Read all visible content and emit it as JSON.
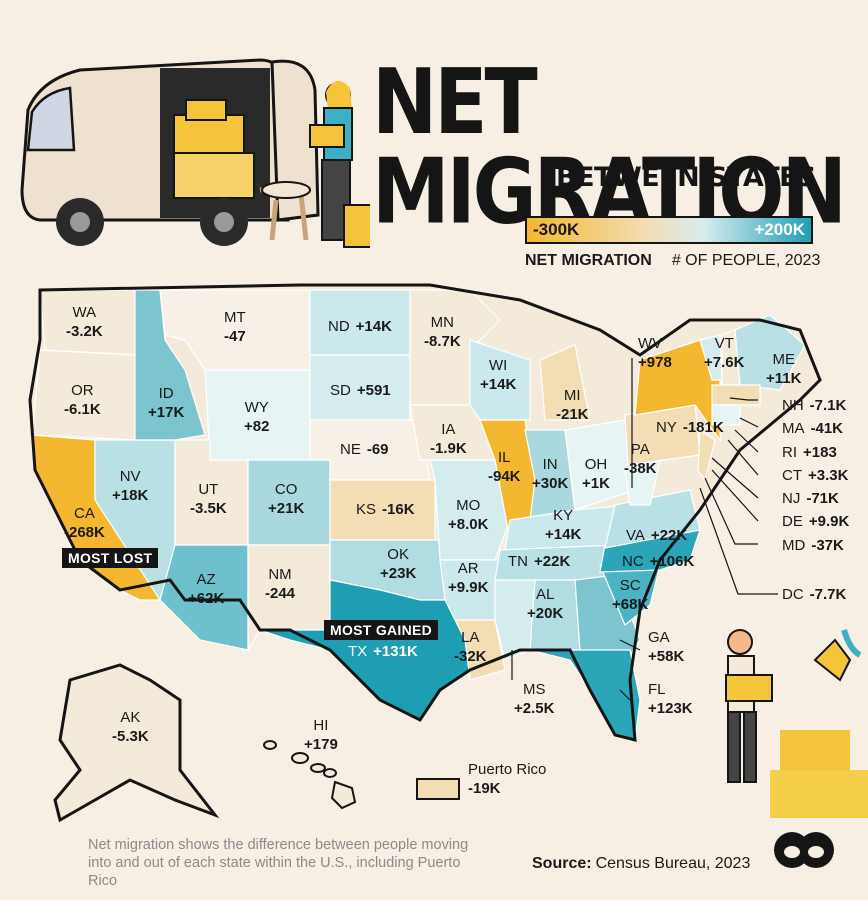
{
  "title": "NET MIGRATION",
  "subtitle": "BETWEEN STATES",
  "legend": {
    "min_label": "-300K",
    "max_label": "+200K",
    "caption_bold": "NET MIGRATION",
    "caption_rest": "# OF PEOPLE, 2023",
    "low_color": "#f4b730",
    "mid_color": "#f3ddb4",
    "high_color": "#1ea0b4"
  },
  "tags": {
    "most_lost": "MOST LOST",
    "most_gained": "MOST GAINED"
  },
  "states": {
    "WA": {
      "abbr": "WA",
      "value": "-3.2K"
    },
    "OR": {
      "abbr": "OR",
      "value": "-6.1K"
    },
    "CA": {
      "abbr": "CA",
      "value": "-268K"
    },
    "NV": {
      "abbr": "NV",
      "value": "+18K"
    },
    "ID": {
      "abbr": "ID",
      "value": "+17K"
    },
    "MT": {
      "abbr": "MT",
      "value": "-47"
    },
    "WY": {
      "abbr": "WY",
      "value": "+82"
    },
    "UT": {
      "abbr": "UT",
      "value": "-3.5K"
    },
    "AZ": {
      "abbr": "AZ",
      "value": "+62K"
    },
    "CO": {
      "abbr": "CO",
      "value": "+21K"
    },
    "NM": {
      "abbr": "NM",
      "value": "-244"
    },
    "ND": {
      "abbr": "ND",
      "value": "+14K"
    },
    "SD": {
      "abbr": "SD",
      "value": "+591"
    },
    "NE": {
      "abbr": "NE",
      "value": "-69"
    },
    "KS": {
      "abbr": "KS",
      "value": "-16K"
    },
    "OK": {
      "abbr": "OK",
      "value": "+23K"
    },
    "TX": {
      "abbr": "TX",
      "value": "+131K"
    },
    "MN": {
      "abbr": "MN",
      "value": "-8.7K"
    },
    "IA": {
      "abbr": "IA",
      "value": "-1.9K"
    },
    "MO": {
      "abbr": "MO",
      "value": "+8.0K"
    },
    "AR": {
      "abbr": "AR",
      "value": "+9.9K"
    },
    "LA": {
      "abbr": "LA",
      "value": "-32K"
    },
    "WI": {
      "abbr": "WI",
      "value": "+14K"
    },
    "IL": {
      "abbr": "IL",
      "value": "-94K"
    },
    "MI": {
      "abbr": "MI",
      "value": "-21K"
    },
    "IN": {
      "abbr": "IN",
      "value": "+30K"
    },
    "OH": {
      "abbr": "OH",
      "value": "+1K"
    },
    "KY": {
      "abbr": "KY",
      "value": "+14K"
    },
    "TN": {
      "abbr": "TN",
      "value": "+22K"
    },
    "MS": {
      "abbr": "MS",
      "value": "+2.5K"
    },
    "AL": {
      "abbr": "AL",
      "value": "+20K"
    },
    "GA": {
      "abbr": "GA",
      "value": "+58K"
    },
    "FL": {
      "abbr": "FL",
      "value": "+123K"
    },
    "SC": {
      "abbr": "SC",
      "value": "+68K"
    },
    "NC": {
      "abbr": "NC",
      "value": "+106K"
    },
    "VA": {
      "abbr": "VA",
      "value": "+22K"
    },
    "WV": {
      "abbr": "WV",
      "value": "+978"
    },
    "PA": {
      "abbr": "PA",
      "value": "-38K"
    },
    "NY": {
      "abbr": "NY",
      "value": "-181K"
    },
    "VT": {
      "abbr": "VT",
      "value": "+7.6K"
    },
    "ME": {
      "abbr": "ME",
      "value": "+11K"
    },
    "NH": {
      "abbr": "NH",
      "value": "-7.1K"
    },
    "MA": {
      "abbr": "MA",
      "value": "-41K"
    },
    "RI": {
      "abbr": "RI",
      "value": "+183"
    },
    "CT": {
      "abbr": "CT",
      "value": "+3.3K"
    },
    "NJ": {
      "abbr": "NJ",
      "value": "-71K"
    },
    "DE": {
      "abbr": "DE",
      "value": "+9.9K"
    },
    "MD": {
      "abbr": "MD",
      "value": "-37K"
    },
    "DC": {
      "abbr": "DC",
      "value": "-7.7K"
    },
    "AK": {
      "abbr": "AK",
      "value": "-5.3K"
    },
    "HI": {
      "abbr": "HI",
      "value": "+179"
    },
    "PR": {
      "abbr": "Puerto Rico",
      "value": "-19K"
    }
  },
  "footnote": "Net migration shows the difference between people moving into and out of each state within the U.S., including Puerto Rico",
  "source_label": "Source:",
  "source_text": "Census Bureau, 2023",
  "icons": [
    "moving-van-icon",
    "woman-with-box-icon",
    "man-carrying-box-icon",
    "publisher-logo-icon"
  ]
}
